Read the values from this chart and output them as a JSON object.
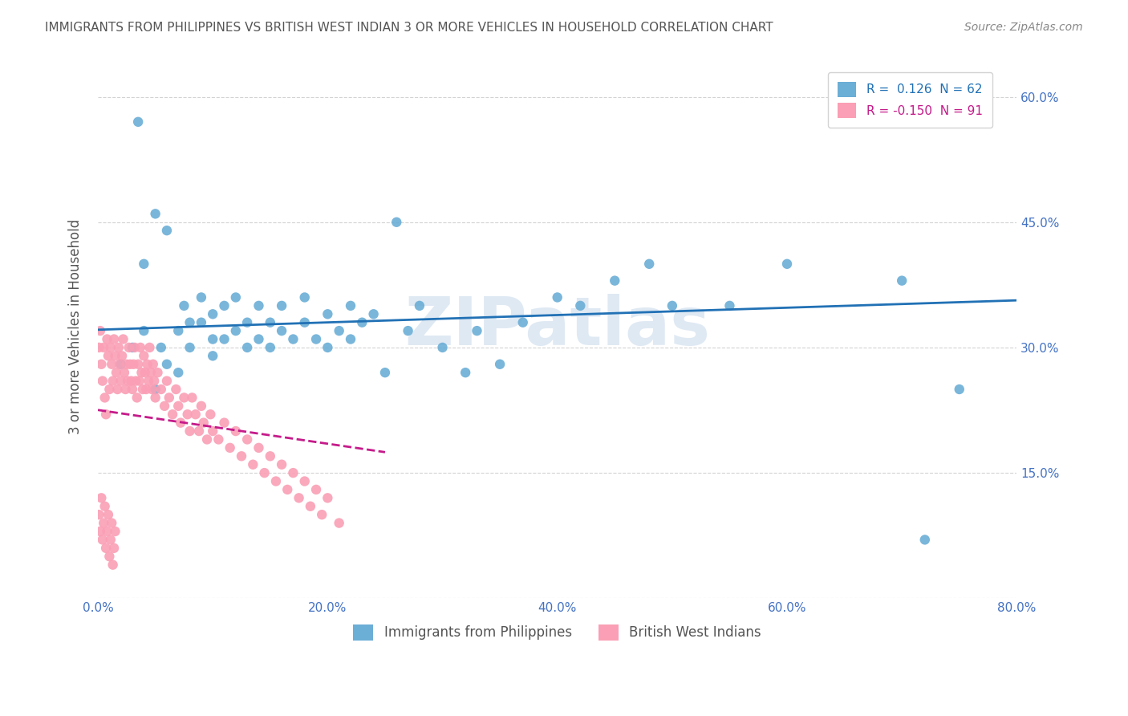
{
  "title": "IMMIGRANTS FROM PHILIPPINES VS BRITISH WEST INDIAN 3 OR MORE VEHICLES IN HOUSEHOLD CORRELATION CHART",
  "source": "Source: ZipAtlas.com",
  "xlabel_ticks": [
    "0.0%",
    "20.0%",
    "40.0%",
    "60.0%",
    "80.0%"
  ],
  "ylabel_ticks_right": [
    "15.0%",
    "30.0%",
    "45.0%",
    "60.0%"
  ],
  "xlim": [
    0.0,
    0.8
  ],
  "ylim": [
    0.0,
    0.65
  ],
  "yticks": [
    0.0,
    0.15,
    0.3,
    0.45,
    0.6
  ],
  "xticks": [
    0.0,
    0.2,
    0.4,
    0.6,
    0.8
  ],
  "blue_R": 0.126,
  "blue_N": 62,
  "pink_R": -0.15,
  "pink_N": 91,
  "blue_color": "#6baed6",
  "pink_color": "#fa9fb5",
  "blue_line_color": "#2171b5",
  "pink_line_color": "#c51b8a",
  "watermark": "ZIPatlas",
  "watermark_color": "#c0d4e8",
  "legend_label_blue": "Immigrants from Philippines",
  "legend_label_pink": "British West Indians",
  "ylabel": "3 or more Vehicles in Household",
  "blue_scatter_x": [
    0.02,
    0.03,
    0.035,
    0.04,
    0.04,
    0.05,
    0.05,
    0.055,
    0.06,
    0.06,
    0.07,
    0.07,
    0.075,
    0.08,
    0.08,
    0.09,
    0.09,
    0.1,
    0.1,
    0.1,
    0.11,
    0.11,
    0.12,
    0.12,
    0.13,
    0.13,
    0.14,
    0.14,
    0.15,
    0.15,
    0.16,
    0.16,
    0.17,
    0.18,
    0.18,
    0.19,
    0.2,
    0.2,
    0.21,
    0.22,
    0.22,
    0.23,
    0.24,
    0.25,
    0.26,
    0.27,
    0.28,
    0.3,
    0.32,
    0.33,
    0.35,
    0.37,
    0.4,
    0.42,
    0.45,
    0.48,
    0.5,
    0.55,
    0.6,
    0.7,
    0.72,
    0.75
  ],
  "blue_scatter_y": [
    0.28,
    0.3,
    0.57,
    0.32,
    0.4,
    0.25,
    0.46,
    0.3,
    0.44,
    0.28,
    0.32,
    0.27,
    0.35,
    0.3,
    0.33,
    0.33,
    0.36,
    0.31,
    0.34,
    0.29,
    0.31,
    0.35,
    0.32,
    0.36,
    0.3,
    0.33,
    0.31,
    0.35,
    0.3,
    0.33,
    0.32,
    0.35,
    0.31,
    0.33,
    0.36,
    0.31,
    0.34,
    0.3,
    0.32,
    0.35,
    0.31,
    0.33,
    0.34,
    0.27,
    0.45,
    0.32,
    0.35,
    0.3,
    0.27,
    0.32,
    0.28,
    0.33,
    0.36,
    0.35,
    0.38,
    0.4,
    0.35,
    0.35,
    0.4,
    0.38,
    0.07,
    0.25
  ],
  "pink_scatter_x": [
    0.001,
    0.002,
    0.003,
    0.004,
    0.005,
    0.006,
    0.007,
    0.008,
    0.009,
    0.01,
    0.011,
    0.012,
    0.013,
    0.014,
    0.015,
    0.016,
    0.017,
    0.018,
    0.019,
    0.02,
    0.021,
    0.022,
    0.023,
    0.024,
    0.025,
    0.026,
    0.027,
    0.028,
    0.029,
    0.03,
    0.031,
    0.032,
    0.033,
    0.034,
    0.035,
    0.036,
    0.037,
    0.038,
    0.039,
    0.04,
    0.041,
    0.042,
    0.043,
    0.044,
    0.045,
    0.046,
    0.047,
    0.048,
    0.049,
    0.05,
    0.052,
    0.055,
    0.058,
    0.06,
    0.062,
    0.065,
    0.068,
    0.07,
    0.072,
    0.075,
    0.078,
    0.08,
    0.082,
    0.085,
    0.088,
    0.09,
    0.092,
    0.095,
    0.098,
    0.1,
    0.105,
    0.11,
    0.115,
    0.12,
    0.125,
    0.13,
    0.135,
    0.14,
    0.145,
    0.15,
    0.155,
    0.16,
    0.165,
    0.17,
    0.175,
    0.18,
    0.185,
    0.19,
    0.195,
    0.2,
    0.21
  ],
  "pink_scatter_y": [
    0.3,
    0.32,
    0.28,
    0.26,
    0.3,
    0.24,
    0.22,
    0.31,
    0.29,
    0.25,
    0.3,
    0.28,
    0.26,
    0.31,
    0.29,
    0.27,
    0.25,
    0.3,
    0.28,
    0.26,
    0.29,
    0.31,
    0.27,
    0.25,
    0.28,
    0.26,
    0.3,
    0.28,
    0.26,
    0.25,
    0.28,
    0.3,
    0.26,
    0.24,
    0.28,
    0.26,
    0.3,
    0.27,
    0.25,
    0.29,
    0.27,
    0.25,
    0.28,
    0.26,
    0.3,
    0.27,
    0.25,
    0.28,
    0.26,
    0.24,
    0.27,
    0.25,
    0.23,
    0.26,
    0.24,
    0.22,
    0.25,
    0.23,
    0.21,
    0.24,
    0.22,
    0.2,
    0.24,
    0.22,
    0.2,
    0.23,
    0.21,
    0.19,
    0.22,
    0.2,
    0.19,
    0.21,
    0.18,
    0.2,
    0.17,
    0.19,
    0.16,
    0.18,
    0.15,
    0.17,
    0.14,
    0.16,
    0.13,
    0.15,
    0.12,
    0.14,
    0.11,
    0.13,
    0.1,
    0.12,
    0.09
  ],
  "pink_extra_low_x": [
    0.001,
    0.002,
    0.003,
    0.004,
    0.005,
    0.006,
    0.007,
    0.008,
    0.009,
    0.01,
    0.011,
    0.012,
    0.013,
    0.014,
    0.015
  ],
  "pink_extra_low_y": [
    0.1,
    0.08,
    0.12,
    0.07,
    0.09,
    0.11,
    0.06,
    0.08,
    0.1,
    0.05,
    0.07,
    0.09,
    0.04,
    0.06,
    0.08
  ]
}
